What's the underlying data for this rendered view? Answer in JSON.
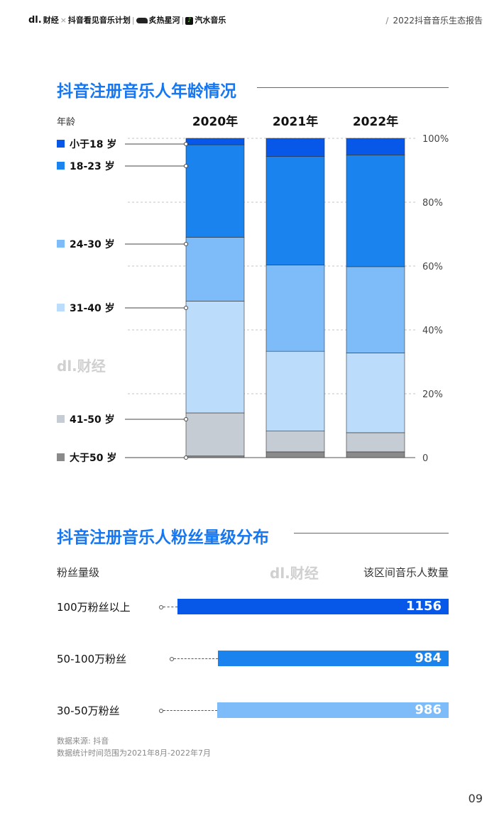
{
  "header": {
    "logo": "dl.",
    "brand_parts": [
      "财经",
      "×",
      "抖音看见音乐计划",
      "|",
      "炙热星河",
      "|",
      "汽水音乐"
    ],
    "report_title": "2022抖音音乐生态报告"
  },
  "section1": {
    "title": "抖音注册音乐人年龄情况",
    "axis_label": "年龄",
    "watermark": "dl.财经"
  },
  "section2": {
    "title": "抖音注册音乐人粉丝量级分布",
    "left_head": "粉丝量级",
    "right_head": "该区间音乐人数量",
    "watermark": "dl.财经"
  },
  "chart_data": [
    {
      "type": "bar",
      "stacked": true,
      "categories": [
        "2020年",
        "2021年",
        "2022年"
      ],
      "series": [
        {
          "name": "大于50 岁",
          "values": [
            0.5,
            1.8,
            1.8
          ],
          "color": "#8a8a8a"
        },
        {
          "name": "41-50 岁",
          "values": [
            13.5,
            6.5,
            6.0
          ],
          "color": "#c6ccd3"
        },
        {
          "name": "31-40 岁",
          "values": [
            35.0,
            25.0,
            25.0
          ],
          "color": "#bcdcfb"
        },
        {
          "name": "24-30 岁",
          "values": [
            20.0,
            27.0,
            27.0
          ],
          "color": "#7dbcf8"
        },
        {
          "name": "18-23 岁",
          "values": [
            29.0,
            34.0,
            35.0
          ],
          "color": "#1a83ee"
        },
        {
          "name": "小于18 岁",
          "values": [
            2.0,
            5.7,
            5.2
          ],
          "color": "#0758e8"
        }
      ],
      "ylim": [
        0,
        100
      ],
      "yticks": [
        "0",
        "20%",
        "40%",
        "60%",
        "80%",
        "100%"
      ],
      "legend_order": [
        "小于18 岁",
        "18-23 岁",
        "24-30 岁",
        "31-40 岁",
        "41-50 岁",
        "大于50 岁"
      ]
    },
    {
      "type": "bar",
      "orientation": "horizontal",
      "categories": [
        "100万粉丝以上",
        "50-100万粉丝",
        "30-50万粉丝"
      ],
      "values": [
        1156,
        984,
        986
      ],
      "colors": [
        "#0758e8",
        "#1a83ee",
        "#7dbcf8"
      ]
    }
  ],
  "source": {
    "line1": "数据来源: 抖音",
    "line2": "数据统计时间范围为2021年8月-2022年7月"
  },
  "page_number": "09"
}
